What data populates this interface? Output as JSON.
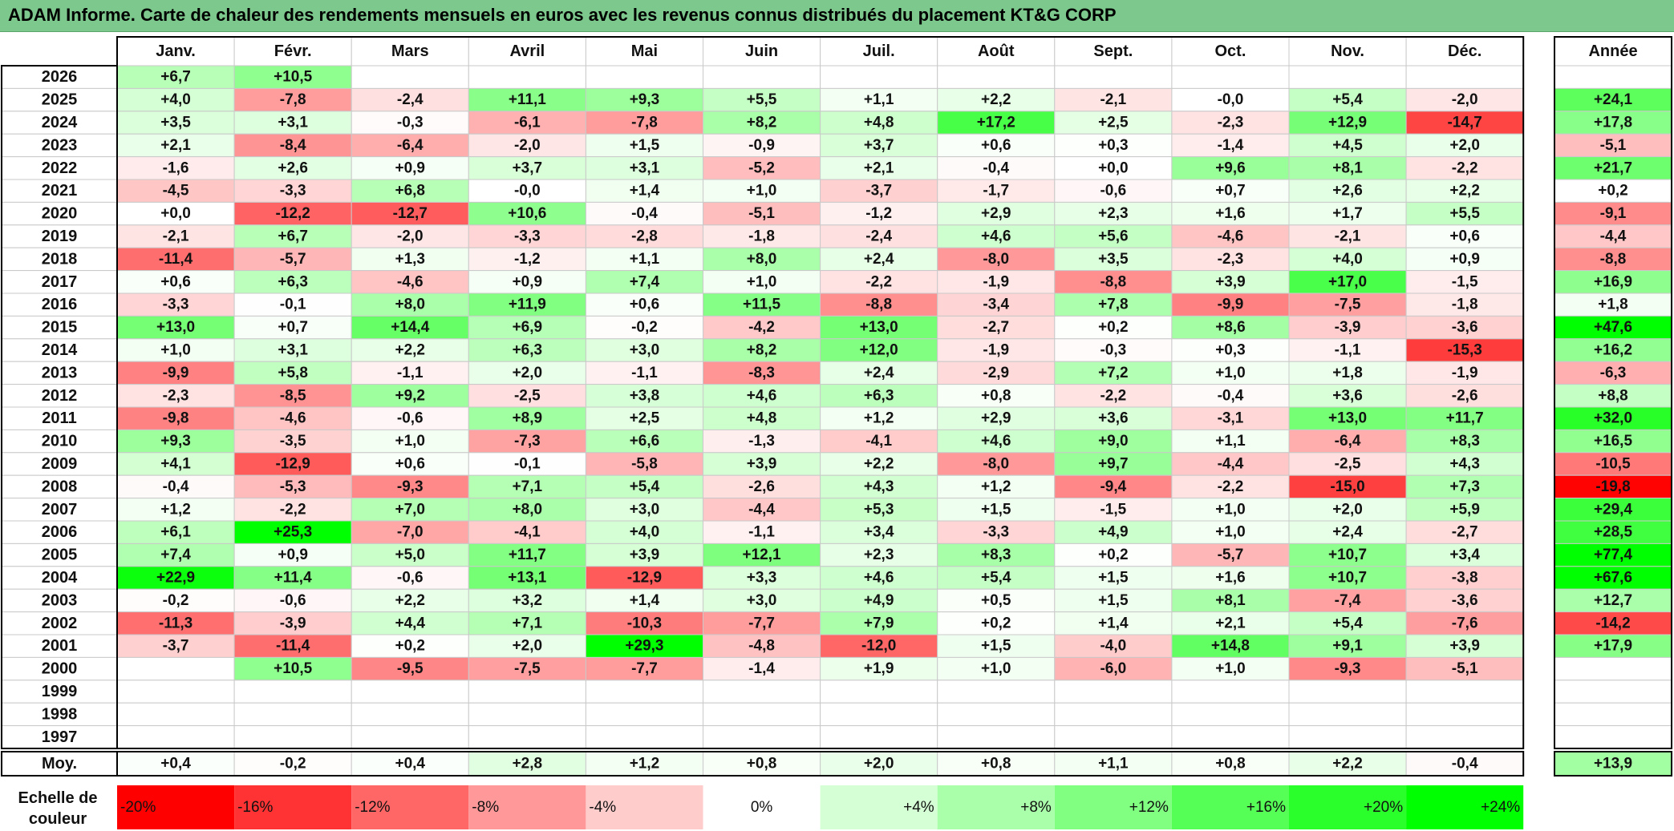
{
  "chart_data": {
    "type": "heatmap",
    "title": "ADAM Informe. Carte de chaleur des rendements mensuels en euros avec les revenus connus distribués du placement KT&G CORP",
    "columns": [
      "Janv.",
      "Févr.",
      "Mars",
      "Avril",
      "Mai",
      "Juin",
      "Juil.",
      "Août",
      "Sept.",
      "Oct.",
      "Nov.",
      "Déc."
    ],
    "annual_header": "Année",
    "rows": [
      {
        "year": "2026",
        "months": [
          "+6,7",
          "+10,5",
          "",
          "",
          "",
          "",
          "",
          "",
          "",
          "",
          "",
          ""
        ],
        "annual": ""
      },
      {
        "year": "2025",
        "months": [
          "+4,0",
          "-7,8",
          "-2,4",
          "+11,1",
          "+9,3",
          "+5,5",
          "+1,1",
          "+2,2",
          "-2,1",
          "-0,0",
          "+5,4",
          "-2,0"
        ],
        "annual": "+24,1"
      },
      {
        "year": "2024",
        "months": [
          "+3,5",
          "+3,1",
          "-0,3",
          "-6,1",
          "-7,8",
          "+8,2",
          "+4,8",
          "+17,2",
          "+2,5",
          "-2,3",
          "+12,9",
          "-14,7"
        ],
        "annual": "+17,8"
      },
      {
        "year": "2023",
        "months": [
          "+2,1",
          "-8,4",
          "-6,4",
          "-2,0",
          "+1,5",
          "-0,9",
          "+3,7",
          "+0,6",
          "+0,3",
          "-1,4",
          "+4,5",
          "+2,0"
        ],
        "annual": "-5,1"
      },
      {
        "year": "2022",
        "months": [
          "-1,6",
          "+2,6",
          "+0,9",
          "+3,7",
          "+3,1",
          "-5,2",
          "+2,1",
          "-0,4",
          "+0,0",
          "+9,6",
          "+8,1",
          "-2,2"
        ],
        "annual": "+21,7"
      },
      {
        "year": "2021",
        "months": [
          "-4,5",
          "-3,3",
          "+6,8",
          "-0,0",
          "+1,4",
          "+1,0",
          "-3,7",
          "-1,7",
          "-0,6",
          "+0,7",
          "+2,6",
          "+2,2"
        ],
        "annual": "+0,2"
      },
      {
        "year": "2020",
        "months": [
          "+0,0",
          "-12,2",
          "-12,7",
          "+10,6",
          "-0,4",
          "-5,1",
          "-1,2",
          "+2,9",
          "+2,3",
          "+1,6",
          "+1,7",
          "+5,5"
        ],
        "annual": "-9,1"
      },
      {
        "year": "2019",
        "months": [
          "-2,1",
          "+6,7",
          "-2,0",
          "-3,3",
          "-2,8",
          "-1,8",
          "-2,4",
          "+4,6",
          "+5,6",
          "-4,6",
          "-2,1",
          "+0,6"
        ],
        "annual": "-4,4"
      },
      {
        "year": "2018",
        "months": [
          "-11,4",
          "-5,7",
          "+1,3",
          "-1,2",
          "+1,1",
          "+8,0",
          "+2,4",
          "-8,0",
          "+3,5",
          "-2,3",
          "+4,0",
          "+0,9"
        ],
        "annual": "-8,8"
      },
      {
        "year": "2017",
        "months": [
          "+0,6",
          "+6,3",
          "-4,6",
          "+0,9",
          "+7,4",
          "+1,0",
          "-2,2",
          "-1,9",
          "-8,8",
          "+3,9",
          "+17,0",
          "-1,5"
        ],
        "annual": "+16,9"
      },
      {
        "year": "2016",
        "months": [
          "-3,3",
          "-0,1",
          "+8,0",
          "+11,9",
          "+0,6",
          "+11,5",
          "-8,8",
          "-3,4",
          "+7,8",
          "-9,9",
          "-7,5",
          "-1,8"
        ],
        "annual": "+1,8"
      },
      {
        "year": "2015",
        "months": [
          "+13,0",
          "+0,7",
          "+14,4",
          "+6,9",
          "-0,2",
          "-4,2",
          "+13,0",
          "-2,7",
          "+0,2",
          "+8,6",
          "-3,9",
          "-3,6"
        ],
        "annual": "+47,6"
      },
      {
        "year": "2014",
        "months": [
          "+1,0",
          "+3,1",
          "+2,2",
          "+6,3",
          "+3,0",
          "+8,2",
          "+12,0",
          "-1,9",
          "-0,3",
          "+0,3",
          "-1,1",
          "-15,3"
        ],
        "annual": "+16,2"
      },
      {
        "year": "2013",
        "months": [
          "-9,9",
          "+5,8",
          "-1,1",
          "+2,0",
          "-1,1",
          "-8,3",
          "+2,4",
          "-2,9",
          "+7,2",
          "+1,0",
          "+1,8",
          "-1,9"
        ],
        "annual": "-6,3"
      },
      {
        "year": "2012",
        "months": [
          "-2,3",
          "-8,5",
          "+9,2",
          "-2,5",
          "+3,8",
          "+4,6",
          "+6,3",
          "+0,8",
          "-2,2",
          "-0,4",
          "+3,6",
          "-2,6"
        ],
        "annual": "+8,8"
      },
      {
        "year": "2011",
        "months": [
          "-9,8",
          "-4,6",
          "-0,6",
          "+8,9",
          "+2,5",
          "+4,8",
          "+1,2",
          "+2,9",
          "+3,6",
          "-3,1",
          "+13,0",
          "+11,7"
        ],
        "annual": "+32,0"
      },
      {
        "year": "2010",
        "months": [
          "+9,3",
          "-3,5",
          "+1,0",
          "-7,3",
          "+6,6",
          "-1,3",
          "-4,1",
          "+4,6",
          "+9,0",
          "+1,1",
          "-6,4",
          "+8,3"
        ],
        "annual": "+16,5"
      },
      {
        "year": "2009",
        "months": [
          "+4,1",
          "-12,9",
          "+0,6",
          "-0,1",
          "-5,8",
          "+3,9",
          "+2,2",
          "-8,0",
          "+9,7",
          "-4,4",
          "-2,5",
          "+4,3"
        ],
        "annual": "-10,5"
      },
      {
        "year": "2008",
        "months": [
          "-0,4",
          "-5,3",
          "-9,3",
          "+7,1",
          "+5,4",
          "-2,6",
          "+4,3",
          "+1,2",
          "-9,4",
          "-2,2",
          "-15,0",
          "+7,3"
        ],
        "annual": "-19,8"
      },
      {
        "year": "2007",
        "months": [
          "+1,2",
          "-2,2",
          "+7,0",
          "+8,0",
          "+3,0",
          "-4,4",
          "+5,3",
          "+1,5",
          "-1,5",
          "+1,0",
          "+2,0",
          "+5,9"
        ],
        "annual": "+29,4"
      },
      {
        "year": "2006",
        "months": [
          "+6,1",
          "+25,3",
          "-7,0",
          "-4,1",
          "+4,0",
          "-1,1",
          "+3,4",
          "-3,3",
          "+4,9",
          "+1,0",
          "+2,4",
          "-2,7"
        ],
        "annual": "+28,5"
      },
      {
        "year": "2005",
        "months": [
          "+7,4",
          "+0,9",
          "+5,0",
          "+11,7",
          "+3,9",
          "+12,1",
          "+2,3",
          "+8,3",
          "+0,2",
          "-5,7",
          "+10,7",
          "+3,4"
        ],
        "annual": "+77,4"
      },
      {
        "year": "2004",
        "months": [
          "+22,9",
          "+11,4",
          "-0,6",
          "+13,1",
          "-12,9",
          "+3,3",
          "+4,6",
          "+5,4",
          "+1,5",
          "+1,6",
          "+10,7",
          "-3,8"
        ],
        "annual": "+67,6"
      },
      {
        "year": "2003",
        "months": [
          "-0,2",
          "-0,6",
          "+2,2",
          "+3,2",
          "+1,4",
          "+3,0",
          "+4,9",
          "+0,5",
          "+1,5",
          "+8,1",
          "-7,4",
          "-3,6"
        ],
        "annual": "+12,7"
      },
      {
        "year": "2002",
        "months": [
          "-11,3",
          "-3,9",
          "+4,4",
          "+7,1",
          "-10,3",
          "-7,7",
          "+7,9",
          "+0,2",
          "+1,4",
          "+2,1",
          "+5,4",
          "-7,6"
        ],
        "annual": "-14,2"
      },
      {
        "year": "2001",
        "months": [
          "-3,7",
          "-11,4",
          "+0,2",
          "+2,0",
          "+29,3",
          "-4,8",
          "-12,0",
          "+1,5",
          "-4,0",
          "+14,8",
          "+9,1",
          "+3,9"
        ],
        "annual": "+17,9"
      },
      {
        "year": "2000",
        "months": [
          "",
          "+10,5",
          "-9,5",
          "-7,5",
          "-7,7",
          "-1,4",
          "+1,9",
          "+1,0",
          "-6,0",
          "+1,0",
          "-9,3",
          "-5,1"
        ],
        "annual": ""
      },
      {
        "year": "1999",
        "months": [
          "",
          "",
          "",
          "",
          "",
          "",
          "",
          "",
          "",
          "",
          "",
          ""
        ],
        "annual": ""
      },
      {
        "year": "1998",
        "months": [
          "",
          "",
          "",
          "",
          "",
          "",
          "",
          "",
          "",
          "",
          "",
          ""
        ],
        "annual": ""
      },
      {
        "year": "1997",
        "months": [
          "",
          "",
          "",
          "",
          "",
          "",
          "",
          "",
          "",
          "",
          "",
          ""
        ],
        "annual": ""
      }
    ],
    "average": {
      "label": "Moy.",
      "months": [
        "+0,4",
        "-0,2",
        "+0,4",
        "+2,8",
        "+1,2",
        "+0,8",
        "+2,0",
        "+0,8",
        "+1,1",
        "+0,8",
        "+2,2",
        "-0,4"
      ],
      "annual": "+13,9"
    },
    "color_scale": {
      "label_line1": "Echelle de",
      "label_line2": "couleur",
      "stops": [
        "-20%",
        "-16%",
        "-12%",
        "-8%",
        "-4%",
        "0%",
        "+4%",
        "+8%",
        "+12%",
        "+16%",
        "+20%",
        "+24%"
      ],
      "stop_values": [
        -20,
        -16,
        -12,
        -8,
        -4,
        0,
        4,
        8,
        12,
        16,
        20,
        24
      ],
      "negative_color": "#ff0000",
      "neutral_color": "#ffffff",
      "positive_color": "#00ff00"
    }
  }
}
